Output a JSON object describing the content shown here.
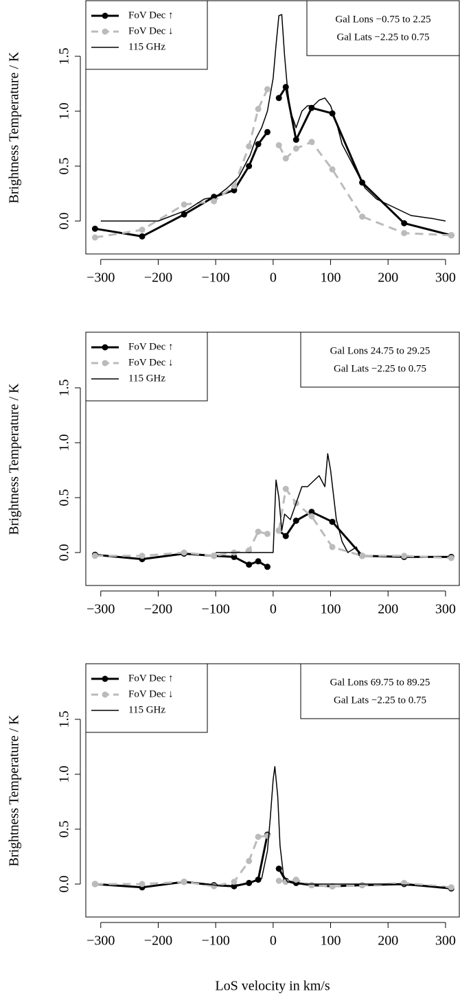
{
  "x_label": "LoS velocity in km/s",
  "chart_data": [
    {
      "type": "line",
      "ylabel": "Brightness Temperature / K",
      "annotations": [
        "Gal Lons −0.75 to 2.25",
        "Gal Lats −2.25 to 0.75"
      ],
      "xlim": [
        -326,
        324
      ],
      "ylim": [
        -0.3,
        2.0
      ],
      "xticks": [
        {
          "value": -300,
          "label": "−300"
        },
        {
          "value": -200,
          "label": "−200"
        },
        {
          "value": -100,
          "label": "−100"
        },
        0,
        100,
        200,
        300
      ],
      "yticks": [
        {
          "value": 0,
          "label": "0.0"
        },
        0.5,
        {
          "value": 1,
          "label": "1.0"
        },
        1.5
      ],
      "legend": "topleft",
      "series": [
        {
          "name": "FoV Dec ↑",
          "color": "#000000",
          "dash": false,
          "marker": true,
          "x": [
            -310,
            -228,
            -155,
            -103,
            -68,
            -42,
            -26,
            -10,
            0,
            10,
            22,
            40,
            67,
            103,
            155,
            228,
            310
          ],
          "values": [
            -0.07,
            -0.14,
            0.06,
            0.22,
            0.28,
            0.5,
            0.7,
            0.81,
            null,
            1.12,
            1.22,
            0.74,
            1.03,
            0.98,
            0.35,
            -0.02,
            -0.13
          ]
        },
        {
          "name": "FoV Dec ↓",
          "color": "#bbbbbb",
          "dash": true,
          "marker": true,
          "x": [
            -310,
            -228,
            -155,
            -103,
            -68,
            -42,
            -26,
            -10,
            0,
            10,
            22,
            40,
            67,
            103,
            155,
            228,
            310
          ],
          "values": [
            -0.15,
            -0.08,
            0.15,
            0.18,
            0.32,
            0.68,
            1.02,
            1.2,
            null,
            0.69,
            0.57,
            0.66,
            0.72,
            0.47,
            0.04,
            -0.11,
            -0.13
          ]
        },
        {
          "name": "115 GHz",
          "color": "#000000",
          "dash": false,
          "marker": false,
          "x": [
            -300,
            -250,
            -200,
            -150,
            -120,
            -100,
            -80,
            -60,
            -40,
            -30,
            -20,
            -10,
            0,
            5,
            10,
            15,
            20,
            25,
            30,
            40,
            50,
            60,
            70,
            80,
            90,
            100,
            110,
            120,
            140,
            160,
            180,
            200,
            240,
            280,
            300
          ],
          "values": [
            0.0,
            0.0,
            0.0,
            0.1,
            0.2,
            0.22,
            0.3,
            0.4,
            0.6,
            0.75,
            0.85,
            1.0,
            1.3,
            1.6,
            1.87,
            1.88,
            1.5,
            1.2,
            1.0,
            0.85,
            1.0,
            1.05,
            1.05,
            1.1,
            1.12,
            1.05,
            0.9,
            0.7,
            0.5,
            0.3,
            0.2,
            0.15,
            0.05,
            0.02,
            0.0
          ]
        }
      ]
    },
    {
      "type": "line",
      "ylabel": "Brightness Temperature / K",
      "annotations": [
        "Gal Lons 24.75 to 29.25",
        "Gal Lats −2.25 to 0.75"
      ],
      "xlim": [
        -326,
        324
      ],
      "ylim": [
        -0.3,
        2.0
      ],
      "xticks": [
        {
          "value": -300,
          "label": "−300"
        },
        {
          "value": -200,
          "label": "−200"
        },
        {
          "value": -100,
          "label": "−100"
        },
        0,
        100,
        200,
        300
      ],
      "yticks": [
        {
          "value": 0,
          "label": "0.0"
        },
        0.5,
        {
          "value": 1,
          "label": "1.0"
        },
        1.5
      ],
      "legend": "topleft",
      "series": [
        {
          "name": "FoV Dec ↑",
          "color": "#000000",
          "dash": false,
          "marker": true,
          "x": [
            -310,
            -228,
            -155,
            -103,
            -68,
            -42,
            -26,
            -10,
            0,
            10,
            22,
            40,
            67,
            103,
            155,
            228,
            310
          ],
          "values": [
            -0.02,
            -0.06,
            -0.01,
            -0.03,
            -0.04,
            -0.11,
            -0.08,
            -0.13,
            null,
            0.2,
            0.15,
            0.29,
            0.37,
            0.28,
            -0.03,
            -0.04,
            -0.04
          ]
        },
        {
          "name": "FoV Dec ↓",
          "color": "#bbbbbb",
          "dash": true,
          "marker": true,
          "x": [
            -310,
            -228,
            -155,
            -103,
            -68,
            -42,
            -26,
            -10,
            0,
            10,
            22,
            40,
            67,
            103,
            155,
            228,
            310
          ],
          "values": [
            -0.03,
            -0.03,
            0.0,
            -0.03,
            0.0,
            0.02,
            0.19,
            0.17,
            null,
            0.2,
            0.58,
            0.45,
            0.33,
            0.05,
            -0.03,
            -0.03,
            -0.05
          ]
        },
        {
          "name": "115 GHz",
          "color": "#000000",
          "dash": false,
          "marker": false,
          "x": [
            -100,
            -50,
            0,
            5,
            10,
            15,
            20,
            30,
            40,
            50,
            60,
            70,
            80,
            90,
            95,
            100,
            110,
            120,
            130,
            145,
            150
          ],
          "values": [
            0.0,
            0.0,
            0.0,
            0.66,
            0.5,
            0.2,
            0.35,
            0.3,
            0.45,
            0.6,
            0.6,
            0.65,
            0.7,
            0.6,
            0.9,
            0.75,
            0.3,
            0.1,
            0.0,
            0.05,
            -0.03
          ]
        }
      ]
    },
    {
      "type": "line",
      "ylabel": "Brightness Temperature / K",
      "annotations": [
        "Gal Lons 69.75 to 89.25",
        "Gal Lats −2.25 to 0.75"
      ],
      "xlim": [
        -326,
        324
      ],
      "ylim": [
        -0.3,
        2.0
      ],
      "xticks": [
        {
          "value": -300,
          "label": "−300"
        },
        {
          "value": -200,
          "label": "−200"
        },
        {
          "value": -100,
          "label": "−100"
        },
        0,
        100,
        200,
        300
      ],
      "yticks": [
        {
          "value": 0,
          "label": "0.0"
        },
        0.5,
        {
          "value": 1,
          "label": "1.0"
        },
        1.5
      ],
      "legend": "topleft",
      "series": [
        {
          "name": "FoV Dec ↑",
          "color": "#000000",
          "dash": false,
          "marker": true,
          "x": [
            -310,
            -228,
            -155,
            -103,
            -68,
            -42,
            -26,
            -10,
            0,
            10,
            22,
            40,
            67,
            103,
            155,
            228,
            310
          ],
          "values": [
            0.0,
            -0.03,
            0.02,
            -0.01,
            -0.02,
            0.01,
            0.04,
            0.45,
            null,
            0.14,
            0.03,
            0.01,
            -0.01,
            -0.02,
            -0.01,
            0.0,
            -0.04
          ]
        },
        {
          "name": "FoV Dec ↓",
          "color": "#bbbbbb",
          "dash": true,
          "marker": true,
          "x": [
            -310,
            -228,
            -155,
            -103,
            -68,
            -42,
            -26,
            -10,
            0,
            10,
            22,
            40,
            67,
            103,
            155,
            228,
            310
          ],
          "values": [
            0.0,
            0.0,
            0.02,
            -0.02,
            0.02,
            0.21,
            0.43,
            0.44,
            null,
            0.03,
            0.02,
            0.04,
            -0.01,
            -0.02,
            -0.01,
            0.01,
            -0.03
          ]
        },
        {
          "name": "115 GHz",
          "color": "#000000",
          "dash": false,
          "marker": false,
          "x": [
            -120,
            -80,
            -40,
            -20,
            -10,
            -5,
            0,
            3,
            8,
            12,
            18,
            25,
            40,
            100,
            200,
            300
          ],
          "values": [
            0.0,
            -0.02,
            0.01,
            0.05,
            0.3,
            0.6,
            0.95,
            1.07,
            0.8,
            0.35,
            0.08,
            0.02,
            0.0,
            0.0,
            0.0,
            -0.03
          ]
        }
      ]
    }
  ]
}
